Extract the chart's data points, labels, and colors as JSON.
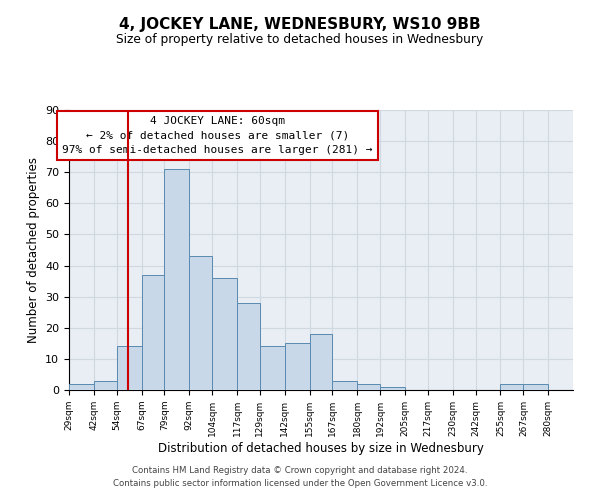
{
  "title": "4, JOCKEY LANE, WEDNESBURY, WS10 9BB",
  "subtitle": "Size of property relative to detached houses in Wednesbury",
  "xlabel": "Distribution of detached houses by size in Wednesbury",
  "ylabel": "Number of detached properties",
  "footer_line1": "Contains HM Land Registry data © Crown copyright and database right 2024.",
  "footer_line2": "Contains public sector information licensed under the Open Government Licence v3.0.",
  "bin_labels": [
    "29sqm",
    "42sqm",
    "54sqm",
    "67sqm",
    "79sqm",
    "92sqm",
    "104sqm",
    "117sqm",
    "129sqm",
    "142sqm",
    "155sqm",
    "167sqm",
    "180sqm",
    "192sqm",
    "205sqm",
    "217sqm",
    "230sqm",
    "242sqm",
    "255sqm",
    "267sqm",
    "280sqm"
  ],
  "bin_edges": [
    29,
    42,
    54,
    67,
    79,
    92,
    104,
    117,
    129,
    142,
    155,
    167,
    180,
    192,
    205,
    217,
    230,
    242,
    255,
    267,
    280
  ],
  "bar_heights": [
    2,
    3,
    14,
    37,
    71,
    43,
    36,
    28,
    14,
    15,
    18,
    3,
    2,
    1,
    0,
    0,
    0,
    0,
    2,
    2,
    0
  ],
  "bar_color": "#c8d8e8",
  "bar_edge_color": "#5a8ab0",
  "property_line_x": 60,
  "property_line_color": "#cc0000",
  "ylim": [
    0,
    90
  ],
  "yticks": [
    0,
    10,
    20,
    30,
    40,
    50,
    60,
    70,
    80,
    90
  ],
  "annotation_title": "4 JOCKEY LANE: 60sqm",
  "annotation_line1": "← 2% of detached houses are smaller (7)",
  "annotation_line2": "97% of semi-detached houses are larger (281) →",
  "annotation_box_color": "#ffffff",
  "annotation_box_edge_color": "#cc0000",
  "grid_color": "#d0d8e0",
  "background_color": "#e8eef4"
}
